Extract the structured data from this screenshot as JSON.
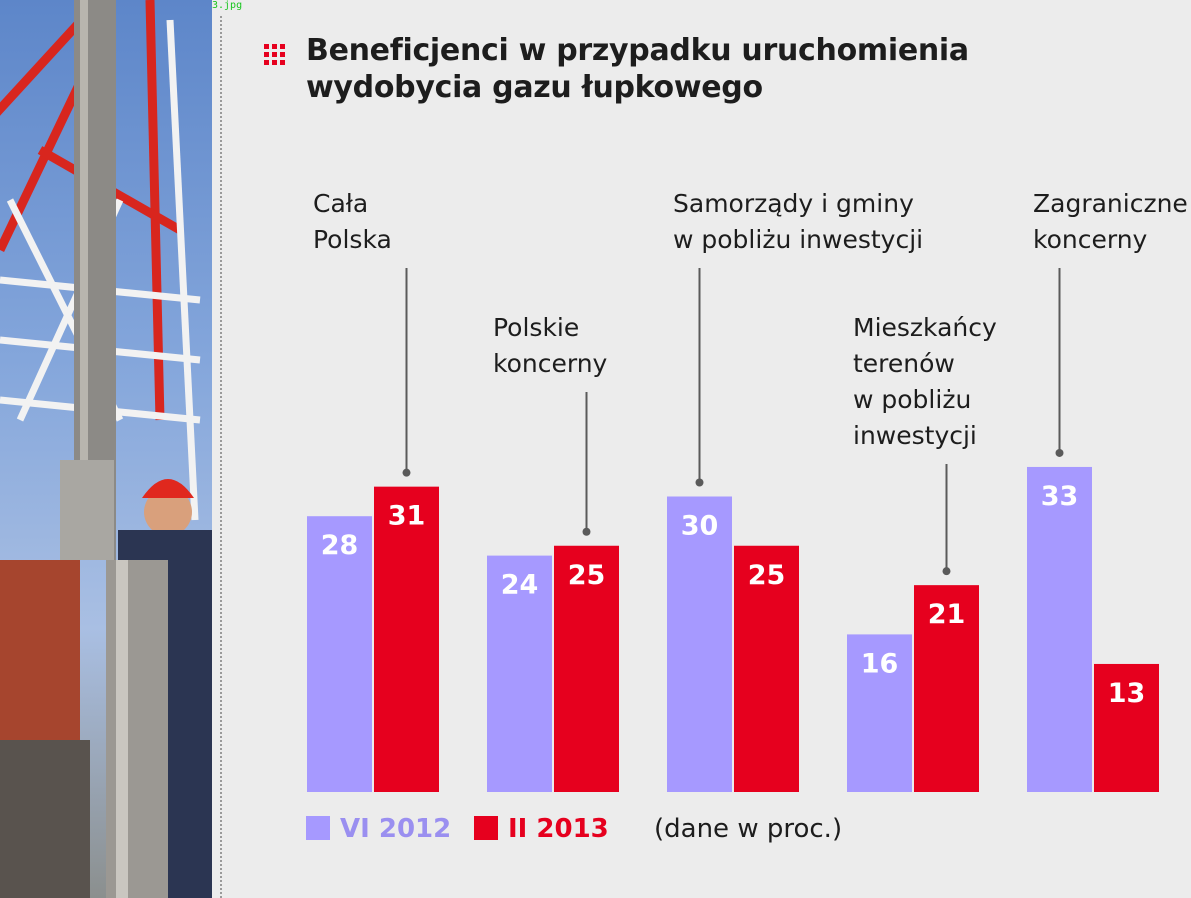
{
  "file_label": "3.jpg",
  "title_lines": [
    "Beneficjenci w przypadku uruchomienia",
    "wydobycia gazu łupkowego"
  ],
  "colors": {
    "series_a": "#a699ff",
    "series_b": "#e6001e",
    "title_mark": "#e6001e"
  },
  "legend": {
    "series_a": "VI 2012",
    "series_b": "II 2013",
    "note": "(dane w proc.)"
  },
  "chart_data": {
    "type": "bar",
    "title": "Beneficjenci w przypadku uruchomienia wydobycia gazu łupkowego",
    "unit": "(dane w proc.)",
    "categories": [
      [
        "Cała",
        "Polska"
      ],
      [
        "Polskie",
        "koncerny"
      ],
      [
        "Samorządy i gminy",
        "w pobliżu inwestycji"
      ],
      [
        "Mieszkańcy",
        "terenów",
        "w pobliżu",
        "inwestycji"
      ],
      [
        "Zagraniczne",
        "koncerny"
      ]
    ],
    "series": [
      {
        "name": "VI 2012",
        "values": [
          28,
          24,
          30,
          16,
          33
        ]
      },
      {
        "name": "II 2013",
        "values": [
          31,
          25,
          25,
          21,
          13
        ]
      }
    ],
    "ylim": [
      0,
      37
    ],
    "grid": false,
    "legend_position": "bottom-left"
  }
}
